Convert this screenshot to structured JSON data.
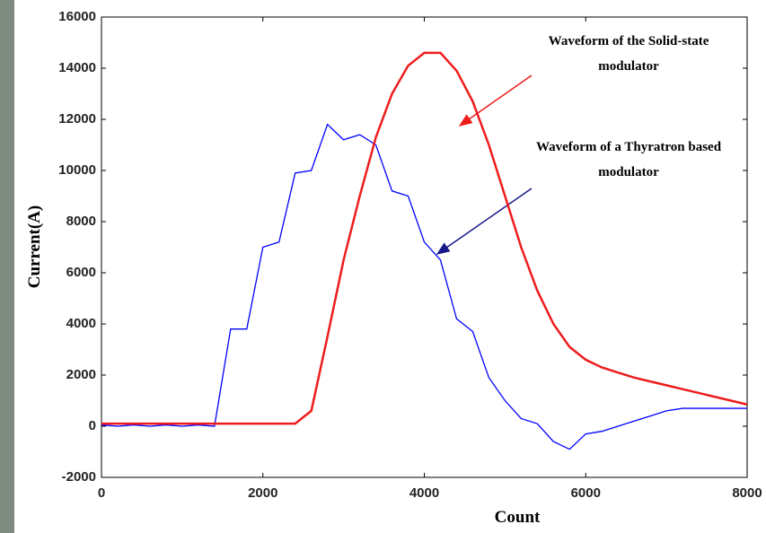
{
  "chart_data": {
    "type": "line",
    "xlabel": "Count",
    "ylabel": "Current(A)",
    "x": [
      0,
      200,
      400,
      600,
      800,
      1000,
      1200,
      1400,
      1600,
      1800,
      2000,
      2200,
      2400,
      2600,
      2800,
      3000,
      3200,
      3400,
      3600,
      3800,
      4000,
      4200,
      4400,
      4600,
      4800,
      5000,
      5200,
      5400,
      5600,
      5800,
      6000,
      6200,
      6400,
      6600,
      6800,
      7000,
      7200,
      7400,
      7600,
      7800,
      8000
    ],
    "series": [
      {
        "color": "#0000ff",
        "values": [
          50,
          0,
          50,
          0,
          50,
          0,
          50,
          0,
          3800,
          3800,
          7000,
          7200,
          9900,
          10000,
          11800,
          11200,
          11400,
          11000,
          9200,
          9000,
          7200,
          6500,
          4200,
          3700,
          1900,
          1000,
          300,
          100,
          -600,
          -900,
          -300,
          -200,
          0,
          200,
          400,
          600,
          700,
          700,
          700,
          700,
          700
        ]
      },
      {
        "color": "#ee1c1c",
        "values": [
          100,
          100,
          100,
          100,
          100,
          100,
          100,
          100,
          100,
          100,
          100,
          100,
          100,
          600,
          3500,
          6500,
          9000,
          11300,
          13000,
          14100,
          14600,
          14600,
          13900,
          12700,
          11000,
          9000,
          7000,
          5300,
          4000,
          3100,
          2600,
          2300,
          2100,
          1900,
          1750,
          1600,
          1450,
          1300,
          1150,
          1000,
          850
        ]
      }
    ],
    "xlim": [
      0,
      8000
    ],
    "xticks": [
      0,
      2000,
      4000,
      6000,
      8000
    ],
    "ylim": [
      -2000,
      16000
    ],
    "yticks": [
      -2000,
      0,
      2000,
      4000,
      6000,
      8000,
      10000,
      12000,
      14000,
      16000
    ],
    "annotations": [
      {
        "lines": [
          "Waveform of the Solid-state",
          "modulator"
        ],
        "color": "#ee1c1c"
      },
      {
        "lines": [
          "Waveform of a Thyratron based",
          "modulator"
        ],
        "color": "#1a1a8c"
      }
    ]
  }
}
